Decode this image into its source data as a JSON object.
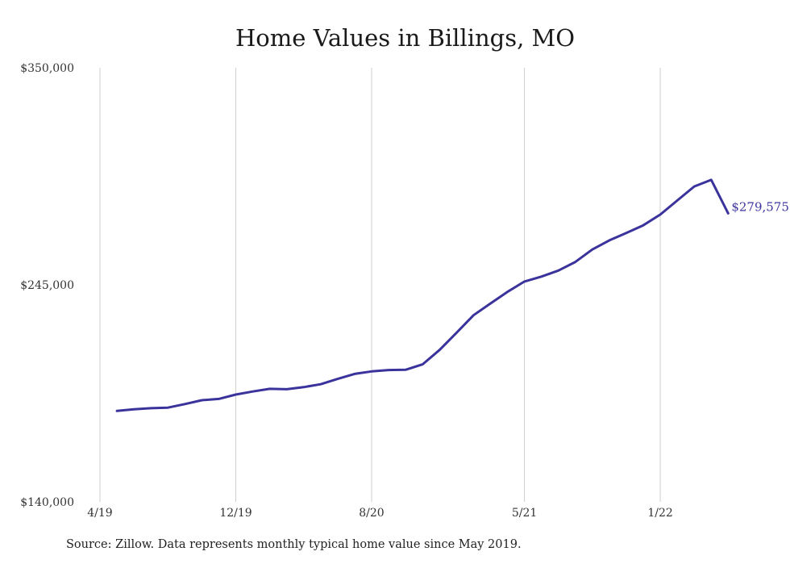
{
  "title": "Home Values in Billings, MO",
  "source_note": "Source: Zillow. Data represents monthly typical home value since May 2019.",
  "colors": {
    "line": "#3b339c",
    "grid": "#cfcfcf",
    "text": "#333333"
  },
  "chart_data": {
    "type": "line",
    "title": "Home Values in Billings, MO",
    "xlabel": "",
    "ylabel": "",
    "ylim": [
      140000,
      350000
    ],
    "y_ticks": [
      140000,
      245000,
      350000
    ],
    "y_tick_labels": [
      "$140,000",
      "$245,000",
      "$350,000"
    ],
    "x_ticks": [
      "4/19",
      "12/19",
      "8/20",
      "5/21",
      "1/22"
    ],
    "grid": "vertical",
    "end_label": "$279,575",
    "series": [
      {
        "x": [
          "2019-05",
          "2019-06",
          "2019-07",
          "2019-08",
          "2019-09",
          "2019-10",
          "2019-11",
          "2019-12",
          "2020-01",
          "2020-02",
          "2020-03",
          "2020-04",
          "2020-05",
          "2020-06",
          "2020-07",
          "2020-08",
          "2020-09",
          "2020-10",
          "2020-11",
          "2020-12",
          "2021-01",
          "2021-02",
          "2021-03",
          "2021-04",
          "2021-05",
          "2021-06",
          "2021-07",
          "2021-08",
          "2021-09",
          "2021-10",
          "2021-11",
          "2021-12",
          "2022-01",
          "2022-02",
          "2022-03",
          "2022-04",
          "2022-05"
        ],
        "values": [
          184000,
          184800,
          185300,
          185600,
          187300,
          189200,
          189800,
          191900,
          193400,
          194700,
          194500,
          195500,
          196900,
          199500,
          201900,
          203100,
          203800,
          203900,
          206500,
          213500,
          221800,
          230300,
          236000,
          241600,
          246600,
          249000,
          251900,
          256100,
          262100,
          266500,
          270100,
          273800,
          279000,
          285800,
          292600,
          295800,
          279575
        ]
      }
    ]
  }
}
